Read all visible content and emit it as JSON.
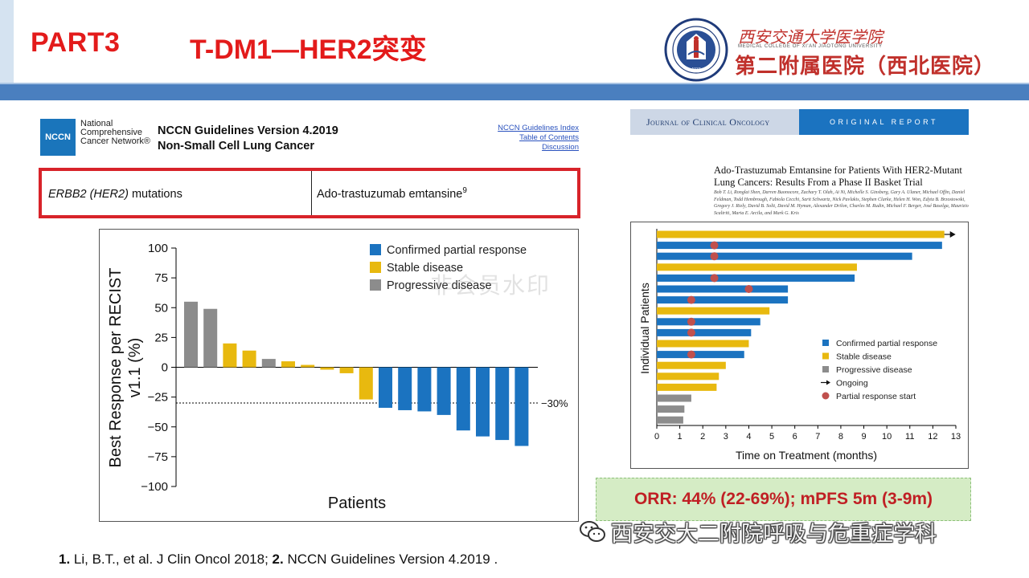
{
  "header": {
    "part": "PART3",
    "title": "T-DM1—HER2突变",
    "logo_line1": "西安交通大学医学院",
    "logo_sub": "MEDICAL COLLEGE OF XI'AN JIAOTONG UNIVERSITY",
    "logo_line2": "第二附属医院（西北医院）",
    "accent_color": "#e31b1b",
    "band_color": "#4a7fbf"
  },
  "nccn": {
    "logo": "NCCN",
    "name": "National Comprehensive Cancer Network®",
    "title1": "NCCN Guidelines Version 4.2019",
    "title2": "Non-Small Cell Lung Cancer",
    "links": [
      "NCCN Guidelines Index",
      "Table of Contents",
      "Discussion"
    ],
    "mutation": "ERBB2 (HER2) mutations",
    "mutation_italic": "ERBB2 (HER2)",
    "mutation_rest": " mutations",
    "therapy": "Ado-trastuzumab emtansine",
    "therapy_ref": "9"
  },
  "jco": {
    "journal": "Journal of Clinical Oncology",
    "report": "ORIGINAL REPORT",
    "paper_title": "Ado-Trastuzumab Emtansine for Patients With HER2-Mutant Lung Cancers: Results From a Phase II Basket Trial",
    "authors": "Bob T. Li, Ronglai Shen, Darren Buonocore, Zachary T. Olah, Ai Ni, Michelle S. Ginsberg, Gary A. Ulaner, Michael Offin, Daniel Feldman, Todd Hembrough, Fabiola Cecchi, Sarit Schwartz, Nick Pavlakis, Stephen Clarke, Helen H. Won, Edyta B. Brzostowski, Gregory J. Riely, David B. Solit, David M. Hyman, Alexander Drilon, Charles M. Rudin, Michael F. Berger, José Baselga, Maurizio Scaltriti, Maria E. Arcila, and Mark G. Kris"
  },
  "summary": "ORR: 44% (22-69%); mPFS 5m (3-9m)",
  "footer": {
    "ref1_num": "1.",
    "ref1": " Li, B.T., et al. J Clin Oncol 2018; ",
    "ref2_num": "2.",
    "ref2": " NCCN Guidelines Version 4.2019 ."
  },
  "watermark": "非会员水印",
  "wechat_watermark": "西安交大二附院呼吸与危重症学科",
  "chart_data": [
    {
      "type": "bar",
      "title": "",
      "xlabel": "Patients",
      "ylabel": "Best Response per RECIST v1.1 (%)",
      "ylim": [
        -100,
        100
      ],
      "yticks": [
        100,
        75,
        50,
        25,
        0,
        -25,
        -50,
        -75,
        -100
      ],
      "ytick_labels": [
        "100",
        "75",
        "50",
        "25",
        "0",
        "−25",
        "−50",
        "−75",
        "−100"
      ],
      "reference_line": {
        "value": -30,
        "label": "−30%"
      },
      "legend": [
        {
          "name": "Confirmed partial response",
          "color": "#1b73c0"
        },
        {
          "name": "Stable disease",
          "color": "#e8b90f"
        },
        {
          "name": "Progressive disease",
          "color": "#8c8c8c"
        }
      ],
      "legend_position": "top-right",
      "bars": [
        {
          "value": 55,
          "status": "Progressive disease"
        },
        {
          "value": 49,
          "status": "Progressive disease"
        },
        {
          "value": 20,
          "status": "Stable disease"
        },
        {
          "value": 14,
          "status": "Stable disease"
        },
        {
          "value": 7,
          "status": "Progressive disease"
        },
        {
          "value": 5,
          "status": "Stable disease"
        },
        {
          "value": 2,
          "status": "Stable disease"
        },
        {
          "value": -2,
          "status": "Stable disease"
        },
        {
          "value": -5,
          "status": "Stable disease"
        },
        {
          "value": -27,
          "status": "Stable disease"
        },
        {
          "value": -34,
          "status": "Confirmed partial response"
        },
        {
          "value": -36,
          "status": "Confirmed partial response"
        },
        {
          "value": -37,
          "status": "Confirmed partial response"
        },
        {
          "value": -40,
          "status": "Confirmed partial response"
        },
        {
          "value": -53,
          "status": "Confirmed partial response"
        },
        {
          "value": -58,
          "status": "Confirmed partial response"
        },
        {
          "value": -61,
          "status": "Confirmed partial response"
        },
        {
          "value": -66,
          "status": "Confirmed partial response"
        }
      ]
    },
    {
      "type": "bar",
      "orientation": "horizontal",
      "title": "",
      "xlabel": "Time on Treatment (months)",
      "ylabel": "Individual Patients",
      "xlim": [
        0,
        13
      ],
      "xticks": [
        0,
        1,
        2,
        3,
        4,
        5,
        6,
        7,
        8,
        9,
        10,
        11,
        12,
        13
      ],
      "legend": [
        {
          "name": "Confirmed partial response",
          "color": "#1b73c0",
          "marker": "square"
        },
        {
          "name": "Stable disease",
          "color": "#e8b90f",
          "marker": "square"
        },
        {
          "name": "Progressive disease",
          "color": "#8c8c8c",
          "marker": "square"
        },
        {
          "name": "Ongoing",
          "color": "#111111",
          "marker": "arrow"
        },
        {
          "name": "Partial response start",
          "color": "#c0504d",
          "marker": "circle"
        }
      ],
      "legend_position": "bottom-right",
      "patients": [
        {
          "months": 12.5,
          "status": "Stable disease",
          "ongoing": true,
          "pr_start": null
        },
        {
          "months": 12.4,
          "status": "Confirmed partial response",
          "ongoing": false,
          "pr_start": 2.5
        },
        {
          "months": 11.1,
          "status": "Confirmed partial response",
          "ongoing": false,
          "pr_start": 2.5
        },
        {
          "months": 8.7,
          "status": "Stable disease",
          "ongoing": false,
          "pr_start": null
        },
        {
          "months": 8.6,
          "status": "Confirmed partial response",
          "ongoing": false,
          "pr_start": 2.5
        },
        {
          "months": 5.7,
          "status": "Confirmed partial response",
          "ongoing": false,
          "pr_start": 4.0
        },
        {
          "months": 5.7,
          "status": "Confirmed partial response",
          "ongoing": false,
          "pr_start": 1.5
        },
        {
          "months": 4.9,
          "status": "Stable disease",
          "ongoing": false,
          "pr_start": null
        },
        {
          "months": 4.5,
          "status": "Confirmed partial response",
          "ongoing": false,
          "pr_start": 1.5
        },
        {
          "months": 4.1,
          "status": "Confirmed partial response",
          "ongoing": false,
          "pr_start": 1.5
        },
        {
          "months": 4.0,
          "status": "Stable disease",
          "ongoing": false,
          "pr_start": null
        },
        {
          "months": 3.8,
          "status": "Confirmed partial response",
          "ongoing": false,
          "pr_start": 1.5
        },
        {
          "months": 3.0,
          "status": "Stable disease",
          "ongoing": false,
          "pr_start": null
        },
        {
          "months": 2.7,
          "status": "Stable disease",
          "ongoing": false,
          "pr_start": null
        },
        {
          "months": 2.6,
          "status": "Stable disease",
          "ongoing": false,
          "pr_start": null
        },
        {
          "months": 1.5,
          "status": "Progressive disease",
          "ongoing": false,
          "pr_start": null
        },
        {
          "months": 1.2,
          "status": "Progressive disease",
          "ongoing": false,
          "pr_start": null
        },
        {
          "months": 1.15,
          "status": "Progressive disease",
          "ongoing": false,
          "pr_start": null
        }
      ]
    }
  ]
}
